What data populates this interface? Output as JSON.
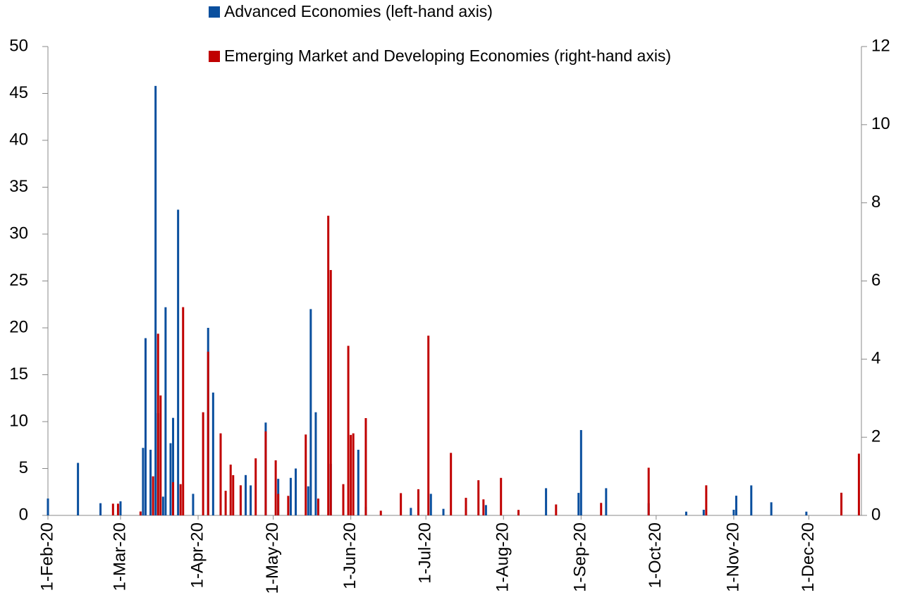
{
  "chart_data": {
    "type": "bar",
    "xlim": [
      "1-Feb-20",
      "22-Dec-20"
    ],
    "xticks": [
      "1-Feb-20",
      "1-Mar-20",
      "1-Apr-20",
      "1-May-20",
      "1-Jun-20",
      "1-Jul-20",
      "1-Aug-20",
      "1-Sep-20",
      "1-Oct-20",
      "1-Nov-20",
      "1-Dec-20"
    ],
    "ylim": [
      0,
      50
    ],
    "yticks": [
      0,
      5,
      10,
      15,
      20,
      25,
      30,
      35,
      40,
      45,
      50
    ],
    "y2lim": [
      0,
      12
    ],
    "y2ticks": [
      0,
      2,
      4,
      6,
      8,
      10,
      12
    ],
    "series": [
      {
        "name": "Advanced Economies (left-hand axis)",
        "color": "#0a4f9e",
        "x": [
          "1-Feb-20",
          "13-Feb-20",
          "22-Feb-20",
          "1-Mar-20",
          "10-Mar-20",
          "11-Mar-20",
          "13-Mar-20",
          "15-Mar-20",
          "16-Mar-20",
          "18-Mar-20",
          "19-Mar-20",
          "21-Mar-20",
          "22-Mar-20",
          "24-Mar-20",
          "30-Mar-20",
          "5-Apr-20",
          "7-Apr-20",
          "20-Apr-20",
          "22-Apr-20",
          "28-Apr-20",
          "3-May-20",
          "8-May-20",
          "10-May-20",
          "15-May-20",
          "16-May-20",
          "18-May-20",
          "24-May-20",
          "4-Jun-20",
          "7-Jun-20",
          "25-Jun-20",
          "3-Jul-20",
          "8-Jul-20",
          "17-Jul-20",
          "25-Jul-20",
          "18-Aug-20",
          "31-Aug-20",
          "1-Sep-20",
          "11-Sep-20",
          "28-Sep-20",
          "13-Oct-20",
          "20-Oct-20",
          "1-Nov-20",
          "2-Nov-20",
          "8-Nov-20",
          "16-Nov-20",
          "30-Nov-20"
        ],
        "values": [
          1.8,
          5.6,
          1.3,
          1.5,
          7.2,
          18.9,
          7.0,
          45.8,
          10.9,
          2.0,
          22.2,
          7.7,
          10.4,
          32.6,
          2.3,
          20.0,
          13.1,
          4.3,
          3.2,
          9.9,
          3.9,
          4.0,
          5.0,
          3.1,
          22.0,
          11.0,
          5.5,
          7.0,
          0.9,
          0.8,
          2.3,
          0.7,
          0.7,
          1.1,
          2.9,
          2.4,
          9.1,
          2.9,
          1.3,
          0.4,
          0.6,
          0.6,
          2.1,
          3.2,
          1.4,
          0.4
        ]
      },
      {
        "name": "Emerging Market and Developing Economies (right-hand axis)",
        "color": "#c00000",
        "axis": "y2",
        "x": [
          "27-Feb-20",
          "29-Feb-20",
          "9-Mar-20",
          "14-Mar-20",
          "16-Mar-20",
          "17-Mar-20",
          "22-Mar-20",
          "25-Mar-20",
          "26-Mar-20",
          "3-Apr-20",
          "5-Apr-20",
          "10-Apr-20",
          "12-Apr-20",
          "14-Apr-20",
          "15-Apr-20",
          "18-Apr-20",
          "24-Apr-20",
          "28-Apr-20",
          "2-May-20",
          "3-May-20",
          "7-May-20",
          "14-May-20",
          "19-May-20",
          "23-May-20",
          "24-May-20",
          "29-May-20",
          "31-May-20",
          "1-Jun-20",
          "2-Jun-20",
          "7-Jun-20",
          "13-Jun-20",
          "21-Jun-20",
          "28-Jun-20",
          "2-Jul-20",
          "11-Jul-20",
          "17-Jul-20",
          "22-Jul-20",
          "24-Jul-20",
          "31-Jul-20",
          "7-Aug-20",
          "22-Aug-20",
          "9-Sep-20",
          "28-Sep-20",
          "21-Oct-20",
          "14-Dec-20",
          "21-Dec-20"
        ],
        "values": [
          0.3,
          0.3,
          0.1,
          1.0,
          4.65,
          3.07,
          0.85,
          0.8,
          5.33,
          2.64,
          4.19,
          2.1,
          0.63,
          1.3,
          1.03,
          0.77,
          1.46,
          2.15,
          1.41,
          0.55,
          0.5,
          2.07,
          0.43,
          7.67,
          6.28,
          0.8,
          4.34,
          2.06,
          2.1,
          2.49,
          0.12,
          0.57,
          0.67,
          4.6,
          1.6,
          0.45,
          0.9,
          0.41,
          0.96,
          0.14,
          0.28,
          0.32,
          1.22,
          0.77,
          0.58,
          1.58
        ]
      }
    ]
  }
}
